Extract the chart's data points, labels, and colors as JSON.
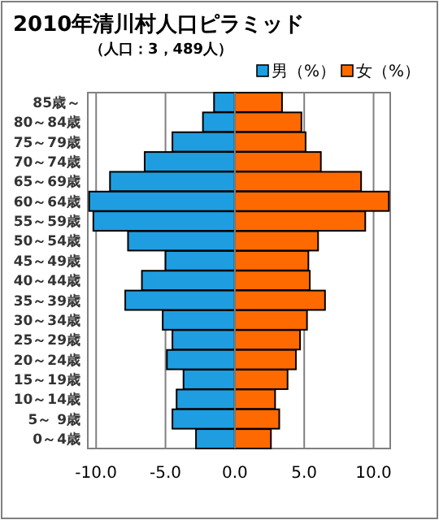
{
  "chart_data": {
    "type": "bar",
    "orientation": "horizontal",
    "stacked": true,
    "title": "2010年清川村人口ピラミッド",
    "subtitle": "（人口：3，489人）",
    "categories": [
      "85歳～",
      "80～84歳",
      "75～79歳",
      "70～74歳",
      "65～69歳",
      "60～64歳",
      "55～59歳",
      "50～54歳",
      "45～49歳",
      "40～44歳",
      "35～39歳",
      "30～34歳",
      "25～29歳",
      "20～24歳",
      "15～19歳",
      "10～14歳",
      "5～ 9歳",
      "0～4歳"
    ],
    "series": [
      {
        "name": "男（%）",
        "color": "#1e9ee0",
        "values": [
          -1.5,
          -2.3,
          -4.5,
          -6.5,
          -9.0,
          -10.5,
          -10.2,
          -7.7,
          -5.0,
          -6.7,
          -7.9,
          -5.2,
          -4.5,
          -4.9,
          -3.7,
          -4.2,
          -4.5,
          -2.8
        ]
      },
      {
        "name": "女（%）",
        "color": "#ff6a00",
        "values": [
          3.4,
          4.8,
          5.1,
          6.2,
          9.1,
          11.1,
          9.4,
          6.0,
          5.3,
          5.4,
          6.5,
          5.2,
          4.7,
          4.4,
          3.8,
          2.9,
          3.2,
          2.6
        ]
      }
    ],
    "xlim": [
      -10.6,
      11.2
    ],
    "xticks": [
      {
        "value": -10,
        "label": "-10.0"
      },
      {
        "value": -5,
        "label": "-5.0"
      },
      {
        "value": 0,
        "label": "0.0"
      },
      {
        "value": 5,
        "label": "5.0"
      },
      {
        "value": 10,
        "label": "10.0"
      }
    ],
    "grid": "x",
    "legend": "top right"
  }
}
